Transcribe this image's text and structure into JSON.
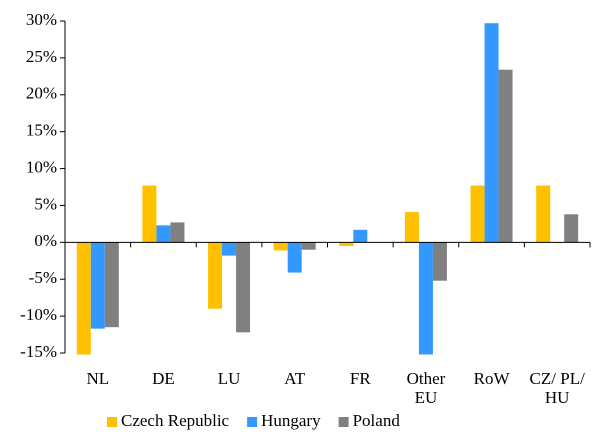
{
  "chart_data": {
    "type": "bar",
    "categories": [
      "NL",
      "DE",
      "LU",
      "AT",
      "FR",
      "Other EU",
      "RoW",
      "CZ/ PL/ HU"
    ],
    "series": [
      {
        "name": "Czech Republic",
        "color": "#ffc000",
        "values": [
          -15.2,
          7.7,
          -9.0,
          -1.1,
          -0.5,
          4.1,
          7.7,
          7.7
        ]
      },
      {
        "name": "Hungary",
        "color": "#3399ff",
        "values": [
          -11.7,
          2.3,
          -1.8,
          -4.1,
          1.7,
          -15.2,
          29.7,
          0
        ]
      },
      {
        "name": "Poland",
        "color": "#808080",
        "values": [
          -11.5,
          2.7,
          -12.2,
          -1.0,
          0,
          -5.2,
          23.4,
          3.8
        ]
      }
    ],
    "ylim": [
      -15,
      30
    ],
    "yticks": [
      {
        "value": -15,
        "label": "-15%"
      },
      {
        "value": -10,
        "label": "-10%"
      },
      {
        "value": -5,
        "label": "-5%"
      },
      {
        "value": 0,
        "label": "0%"
      },
      {
        "value": 5,
        "label": "5%"
      },
      {
        "value": 10,
        "label": "10%"
      },
      {
        "value": 15,
        "label": "15%"
      },
      {
        "value": 20,
        "label": "20%"
      },
      {
        "value": 25,
        "label": "25%"
      },
      {
        "value": 30,
        "label": "30%"
      }
    ],
    "grid": false,
    "legend": "bottom"
  }
}
